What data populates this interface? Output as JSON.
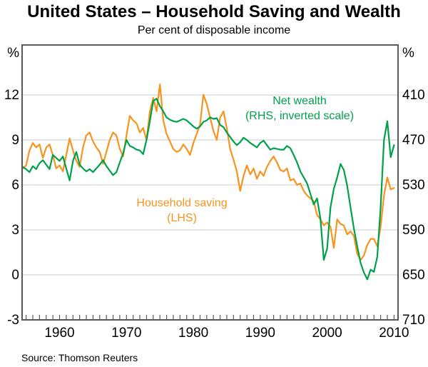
{
  "chart_data": {
    "type": "line",
    "title": "United States – Household Saving and Wealth",
    "subtitle": "Per cent of disposable income",
    "source": "Source: Thomson Reuters",
    "x_range": [
      1954.4,
      2010.6
    ],
    "x_ticks": [
      1960,
      1970,
      1980,
      1990,
      2000,
      2010
    ],
    "x_minor_tick_step": 1,
    "x_minor_tick_first": 1955,
    "x_minor_tick_last": 2010,
    "grid": true,
    "legend_position": "inside",
    "left_axis": {
      "label": "%",
      "ticks": [
        -3,
        0,
        3,
        6,
        9,
        12
      ],
      "range": [
        -3,
        15.33
      ]
    },
    "right_axis": {
      "label": "%",
      "ticks": [
        410,
        470,
        530,
        590,
        650,
        710
      ],
      "range": [
        710,
        343.4
      ],
      "inverted": true
    },
    "annotations": {
      "net_wealth_line1": "Net wealth",
      "net_wealth_line2": "(RHS, inverted scale)",
      "saving_line1": "Household saving",
      "saving_line2": "(LHS)"
    },
    "colors": {
      "saving": "#F8941E",
      "wealth": "#00A14B",
      "grid": "#CBCBCB",
      "frame": "#58595B",
      "text": "#000000"
    },
    "series": [
      {
        "name": "Household saving",
        "axis": "left",
        "unit": "%",
        "x_start": 1954.5,
        "x_step": 0.5,
        "values": [
          7.1,
          7.3,
          8.3,
          8.8,
          8.5,
          8.7,
          7.8,
          8.5,
          8.7,
          8.0,
          7.1,
          7.3,
          6.9,
          8.0,
          9.1,
          8.3,
          7.6,
          7.2,
          8.5,
          9.3,
          9.5,
          8.9,
          8.5,
          8.2,
          7.4,
          8.2,
          9.0,
          9.5,
          9.3,
          8.4,
          7.9,
          9.3,
          10.6,
          10.3,
          10.1,
          9.5,
          9.8,
          9.0,
          10.9,
          11.8,
          10.9,
          12.7,
          10.3,
          9.4,
          8.9,
          8.4,
          8.2,
          8.3,
          8.7,
          8.4,
          8.0,
          8.8,
          9.4,
          10.0,
          12.0,
          11.4,
          10.5,
          9.6,
          9.0,
          10.5,
          10.9,
          9.8,
          8.4,
          7.7,
          6.9,
          5.6,
          6.6,
          7.3,
          6.7,
          7.1,
          6.4,
          6.9,
          6.6,
          7.2,
          7.6,
          7.9,
          7.5,
          7.0,
          6.9,
          7.1,
          6.3,
          6.4,
          6.0,
          6.1,
          5.6,
          5.3,
          5.1,
          4.9,
          4.0,
          3.7,
          3.3,
          3.5,
          3.2,
          1.8,
          3.7,
          3.4,
          3.3,
          2.7,
          2.9,
          2.6,
          1.4,
          1.0,
          1.3,
          2.0,
          2.4,
          2.4,
          1.9,
          3.2,
          5.3,
          6.5,
          5.7,
          5.8
        ]
      },
      {
        "name": "Net wealth",
        "axis": "right",
        "unit": "%",
        "x_start": 1954.5,
        "x_step": 0.5,
        "values": [
          506,
          509,
          513,
          505,
          509,
          501,
          497,
          503,
          509,
          490,
          494,
          498,
          492,
          508,
          524,
          498,
          486,
          503,
          508,
          512,
          509,
          513,
          508,
          503,
          497,
          505,
          511,
          517,
          513,
          500,
          488,
          470,
          478,
          480,
          483,
          484,
          489,
          470,
          445,
          418,
          415,
          425,
          432,
          440,
          443,
          445,
          446,
          444,
          442,
          444,
          448,
          452,
          455,
          452,
          446,
          444,
          440,
          442,
          441,
          450,
          453,
          460,
          466,
          472,
          477,
          473,
          467,
          470,
          474,
          477,
          480,
          474,
          471,
          477,
          483,
          481,
          482,
          483,
          483,
          478,
          481,
          490,
          500,
          512,
          520,
          528,
          542,
          556,
          548,
          575,
          630,
          615,
          560,
          535,
          520,
          502,
          510,
          531,
          560,
          588,
          612,
          634,
          647,
          656,
          643,
          646,
          626,
          560,
          470,
          445,
          493,
          477
        ]
      }
    ]
  }
}
